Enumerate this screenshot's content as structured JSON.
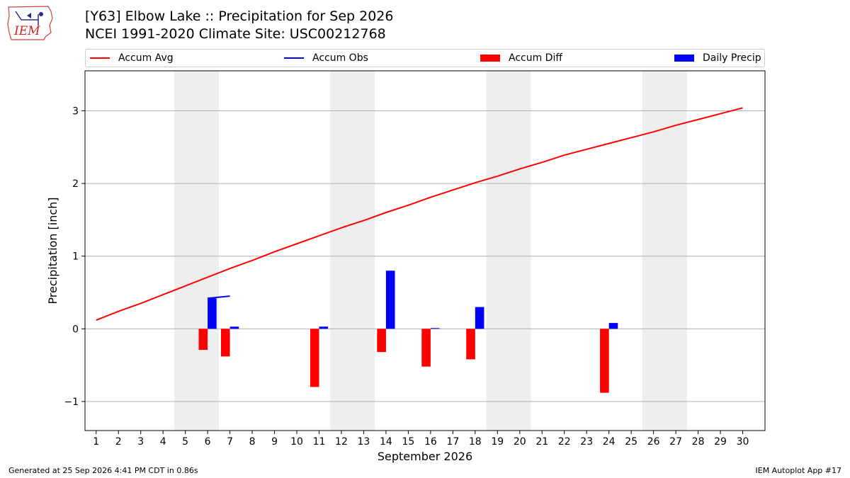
{
  "header": {
    "title_line1": "[Y63] Elbow Lake :: Precipitation for Sep 2026",
    "title_line2": "NCEI 1991-2020 Climate Site: USC00212768",
    "logo_text": "IEM"
  },
  "legend": {
    "position": "top",
    "items": [
      {
        "label": "Accum Avg",
        "color": "#ff0000",
        "kind": "line"
      },
      {
        "label": "Accum Obs",
        "color": "#0000ff",
        "kind": "line"
      },
      {
        "label": "Accum Diff",
        "color": "#ff0000",
        "kind": "box"
      },
      {
        "label": "Daily Precip",
        "color": "#0000ff",
        "kind": "box"
      }
    ]
  },
  "footer": {
    "left": "Generated at 25 Sep 2026 4:41 PM CDT in 0.86s",
    "right": "IEM Autoplot App #17"
  },
  "chart_data": {
    "type": "bar",
    "title": "[Y63] Elbow Lake :: Precipitation for Sep 2026",
    "xlabel": "September 2026",
    "ylabel": "Precipitation [inch]",
    "xlim": [
      0.5,
      31.0
    ],
    "ylim": [
      -1.4,
      3.55
    ],
    "x": [
      1,
      2,
      3,
      4,
      5,
      6,
      7,
      8,
      9,
      10,
      11,
      12,
      13,
      14,
      15,
      16,
      17,
      18,
      19,
      20,
      21,
      22,
      23,
      24,
      25,
      26,
      27,
      28,
      29,
      30
    ],
    "x_tick_labels": [
      "1",
      "2",
      "3",
      "4",
      "5",
      "6",
      "7",
      "8",
      "9",
      "10",
      "11",
      "12",
      "13",
      "14",
      "15",
      "16",
      "17",
      "18",
      "19",
      "20",
      "21",
      "22",
      "23",
      "24",
      "25",
      "26",
      "27",
      "28",
      "29",
      "30"
    ],
    "y_ticks": [
      -1,
      0,
      1,
      2,
      3
    ],
    "y_tick_labels": [
      "−1",
      "0",
      "1",
      "2",
      "3"
    ],
    "grid": "horizontal",
    "weekend_shading": [
      [
        4.5,
        6.5
      ],
      [
        11.5,
        13.5
      ],
      [
        18.5,
        20.5
      ],
      [
        25.5,
        27.5
      ]
    ],
    "weekend_color": "#eeeeee",
    "series": [
      {
        "name": "Accum Avg",
        "type": "line",
        "color": "#ff0000",
        "values": [
          0.12,
          0.24,
          0.35,
          0.47,
          0.59,
          0.71,
          0.83,
          0.94,
          1.06,
          1.17,
          1.28,
          1.39,
          1.49,
          1.6,
          1.7,
          1.81,
          1.91,
          2.01,
          2.1,
          2.2,
          2.29,
          2.39,
          2.47,
          2.55,
          2.63,
          2.71,
          2.8,
          2.88,
          2.96,
          3.04
        ]
      },
      {
        "name": "Accum Obs",
        "type": "line",
        "color": "#0000ff",
        "x": [
          6,
          7
        ],
        "values": [
          0.42,
          0.45
        ]
      },
      {
        "name": "Accum Diff",
        "type": "bar",
        "color": "#ff0000",
        "x": [
          6,
          7,
          11,
          14,
          16,
          18,
          24
        ],
        "values": [
          -0.29,
          -0.38,
          -0.8,
          -0.32,
          -0.52,
          -0.42,
          -0.88
        ]
      },
      {
        "name": "Daily Precip",
        "type": "bar",
        "color": "#0000ff",
        "x": [
          6,
          7,
          11,
          14,
          16,
          18,
          24
        ],
        "values": [
          0.42,
          0.03,
          0.03,
          0.8,
          0.01,
          0.3,
          0.08
        ]
      }
    ]
  }
}
